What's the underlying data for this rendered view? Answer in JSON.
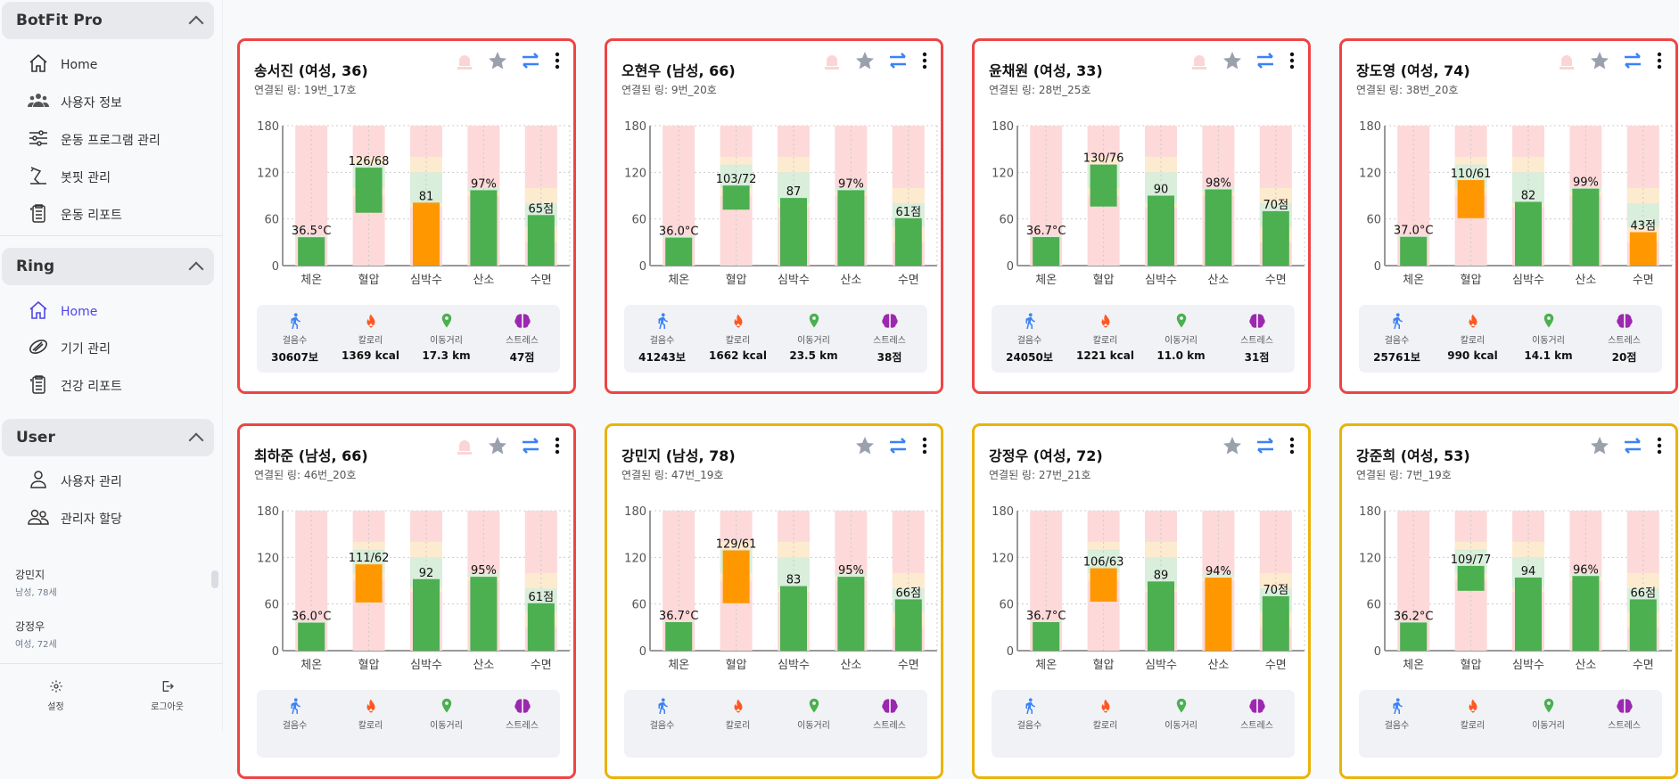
{
  "sidebar": {
    "sections": [
      {
        "title": "BotFit Pro",
        "items": [
          {
            "label": "Home",
            "icon": "home-icon"
          },
          {
            "label": "사용자 정보",
            "icon": "users-icon"
          },
          {
            "label": "운동 프로그램 관리",
            "icon": "sliders-icon"
          },
          {
            "label": "봇핏 관리",
            "icon": "robot-arm-icon"
          },
          {
            "label": "운동 리포트",
            "icon": "report-icon"
          }
        ]
      },
      {
        "title": "Ring",
        "items": [
          {
            "label": "Home",
            "icon": "home-icon",
            "active": true
          },
          {
            "label": "기기 관리",
            "icon": "ring-icon"
          },
          {
            "label": "건강 리포트",
            "icon": "report-icon"
          }
        ]
      },
      {
        "title": "User",
        "items": [
          {
            "label": "사용자 관리",
            "icon": "user-icon"
          },
          {
            "label": "관리자 할당",
            "icon": "user-group-icon"
          }
        ]
      }
    ],
    "users": [
      {
        "name": "강민지",
        "info": "남성, 78세"
      },
      {
        "name": "강정우",
        "info": "여성, 72세"
      }
    ],
    "footer": {
      "settings": "설정",
      "logout": "로그아웃"
    }
  },
  "colors": {
    "alert_red": "#ef4444",
    "warn_yellow": "#eab308",
    "ok": "#4caf50",
    "warn": "#ff9800",
    "zone_red": "#fdd9d9",
    "zone_yellow": "#fdebd0",
    "zone_green": "#d9eedb",
    "accent": "#4f46e5"
  },
  "chart_axis": {
    "ticks": [
      0,
      60,
      120,
      180
    ],
    "ylim": [
      0,
      180
    ],
    "categories": [
      "체온",
      "혈압",
      "심박수",
      "산소",
      "수면"
    ]
  },
  "zones": {
    "체온": {
      "yellow": [],
      "green": [
        [
          35,
          38
        ]
      ]
    },
    "혈압": {
      "yellow": [
        [
          90,
          100
        ],
        [
          130,
          140
        ]
      ],
      "green": [
        [
          100,
          130
        ]
      ]
    },
    "심박수": {
      "yellow": [
        [
          75,
          80
        ],
        [
          120,
          140
        ]
      ],
      "green": [
        [
          80,
          120
        ]
      ]
    },
    "산소": {
      "yellow": [
        [
          90,
          95
        ]
      ],
      "green": [
        [
          95,
          100
        ]
      ]
    },
    "수면": {
      "yellow": [
        [
          30,
          50
        ],
        [
          80,
          100
        ]
      ],
      "green": [
        [
          50,
          80
        ]
      ]
    }
  },
  "stat_labels": [
    "걸음수",
    "칼로리",
    "이동거리",
    "스트레스"
  ],
  "cards": [
    {
      "name": "송서진 (여성, 36)",
      "ring": "연결된 링: 19번_17호",
      "alert": "red",
      "alarm": true,
      "temp": {
        "v": 36.5,
        "label": "36.5°C",
        "c": "ok"
      },
      "bp": {
        "sys": 126,
        "dia": 68,
        "label": "126/68",
        "c": "ok"
      },
      "hr": {
        "v": 81,
        "label": "81",
        "c": "warn"
      },
      "o2": {
        "v": 97,
        "label": "97%",
        "c": "ok"
      },
      "sleep": {
        "v": 65,
        "label": "65점",
        "c": "ok"
      },
      "stats": [
        "30607보",
        "1369 kcal",
        "17.3 km",
        "47점"
      ]
    },
    {
      "name": "오현우 (남성, 66)",
      "ring": "연결된 링: 9번_20호",
      "alert": "red",
      "alarm": true,
      "temp": {
        "v": 36.0,
        "label": "36.0°C",
        "c": "ok"
      },
      "bp": {
        "sys": 103,
        "dia": 72,
        "label": "103/72",
        "c": "ok"
      },
      "hr": {
        "v": 87,
        "label": "87",
        "c": "ok"
      },
      "o2": {
        "v": 97,
        "label": "97%",
        "c": "ok"
      },
      "sleep": {
        "v": 61,
        "label": "61점",
        "c": "ok"
      },
      "stats": [
        "41243보",
        "1662 kcal",
        "23.5 km",
        "38점"
      ]
    },
    {
      "name": "윤채원 (여성, 33)",
      "ring": "연결된 링: 28번_25호",
      "alert": "red",
      "alarm": true,
      "temp": {
        "v": 36.7,
        "label": "36.7°C",
        "c": "ok"
      },
      "bp": {
        "sys": 130,
        "dia": 76,
        "label": "130/76",
        "c": "ok"
      },
      "hr": {
        "v": 90,
        "label": "90",
        "c": "ok"
      },
      "o2": {
        "v": 98,
        "label": "98%",
        "c": "ok"
      },
      "sleep": {
        "v": 70,
        "label": "70점",
        "c": "ok"
      },
      "stats": [
        "24050보",
        "1221 kcal",
        "11.0 km",
        "31점"
      ]
    },
    {
      "name": "장도영 (여성, 74)",
      "ring": "연결된 링: 38번_20호",
      "alert": "red",
      "alarm": true,
      "temp": {
        "v": 37.0,
        "label": "37.0°C",
        "c": "ok"
      },
      "bp": {
        "sys": 110,
        "dia": 61,
        "label": "110/61",
        "c": "warn"
      },
      "hr": {
        "v": 82,
        "label": "82",
        "c": "ok"
      },
      "o2": {
        "v": 99,
        "label": "99%",
        "c": "ok"
      },
      "sleep": {
        "v": 43,
        "label": "43점",
        "c": "warn"
      },
      "stats": [
        "25761보",
        "990 kcal",
        "14.1 km",
        "20점"
      ]
    },
    {
      "name": "최하준 (남성, 66)",
      "ring": "연결된 링: 46번_20호",
      "alert": "red",
      "alarm": true,
      "temp": {
        "v": 36.0,
        "label": "36.0°C",
        "c": "ok"
      },
      "bp": {
        "sys": 111,
        "dia": 62,
        "label": "111/62",
        "c": "warn"
      },
      "hr": {
        "v": 92,
        "label": "92",
        "c": "ok"
      },
      "o2": {
        "v": 95,
        "label": "95%",
        "c": "ok"
      },
      "sleep": {
        "v": 61,
        "label": "61점",
        "c": "ok"
      }
    },
    {
      "name": "강민지 (남성, 78)",
      "ring": "연결된 링: 47번_19호",
      "alert": "yellow",
      "alarm": false,
      "temp": {
        "v": 36.7,
        "label": "36.7°C",
        "c": "ok"
      },
      "bp": {
        "sys": 129,
        "dia": 61,
        "label": "129/61",
        "c": "warn"
      },
      "hr": {
        "v": 83,
        "label": "83",
        "c": "ok"
      },
      "o2": {
        "v": 95,
        "label": "95%",
        "c": "ok"
      },
      "sleep": {
        "v": 66,
        "label": "66점",
        "c": "ok"
      }
    },
    {
      "name": "강정우 (여성, 72)",
      "ring": "연결된 링: 27번_21호",
      "alert": "yellow",
      "alarm": false,
      "temp": {
        "v": 36.7,
        "label": "36.7°C",
        "c": "ok"
      },
      "bp": {
        "sys": 106,
        "dia": 63,
        "label": "106/63",
        "c": "warn"
      },
      "hr": {
        "v": 89,
        "label": "89",
        "c": "ok"
      },
      "o2": {
        "v": 94,
        "label": "94%",
        "c": "warn"
      },
      "sleep": {
        "v": 70,
        "label": "70점",
        "c": "ok"
      }
    },
    {
      "name": "강준희 (여성, 53)",
      "ring": "연결된 링: 7번_19호",
      "alert": "yellow",
      "alarm": false,
      "temp": {
        "v": 36.2,
        "label": "36.2°C",
        "c": "ok"
      },
      "bp": {
        "sys": 109,
        "dia": 77,
        "label": "109/77",
        "c": "ok"
      },
      "hr": {
        "v": 94,
        "label": "94",
        "c": "ok"
      },
      "o2": {
        "v": 96,
        "label": "96%",
        "c": "ok"
      },
      "sleep": {
        "v": 66,
        "label": "66점",
        "c": "ok"
      }
    }
  ]
}
